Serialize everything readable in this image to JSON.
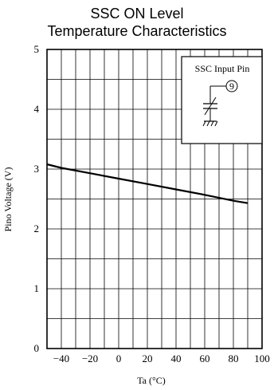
{
  "chart_data": {
    "type": "line",
    "title_lines": [
      "SSC ON Level",
      "Temperature Characteristics"
    ],
    "xlabel": "Ta (°C)",
    "ylabel": "Pino Voltage (V)",
    "xlim": [
      -50,
      100
    ],
    "ylim": [
      0,
      5
    ],
    "x_ticks": [
      "−40",
      "−20",
      "0",
      "20",
      "40",
      "60",
      "80",
      "100"
    ],
    "x_tick_values": [
      -40,
      -20,
      0,
      20,
      40,
      60,
      80,
      100
    ],
    "y_ticks": [
      "0",
      "1",
      "2",
      "3",
      "4",
      "5"
    ],
    "y_tick_values": [
      0,
      1,
      2,
      3,
      4,
      5
    ],
    "x_grid_step": 10,
    "y_grid_step": 0.5,
    "grid": true,
    "series": [
      {
        "x": [
          -50,
          -40,
          -20,
          0,
          20,
          40,
          60,
          80,
          90
        ],
        "y": [
          3.08,
          3.02,
          2.93,
          2.84,
          2.75,
          2.66,
          2.57,
          2.47,
          2.43
        ]
      }
    ],
    "inset": {
      "label": "SSC Input Pin",
      "pin_number": "9"
    }
  },
  "colors": {
    "line": "#000000",
    "grid": "#000000",
    "background": "#ffffff"
  }
}
